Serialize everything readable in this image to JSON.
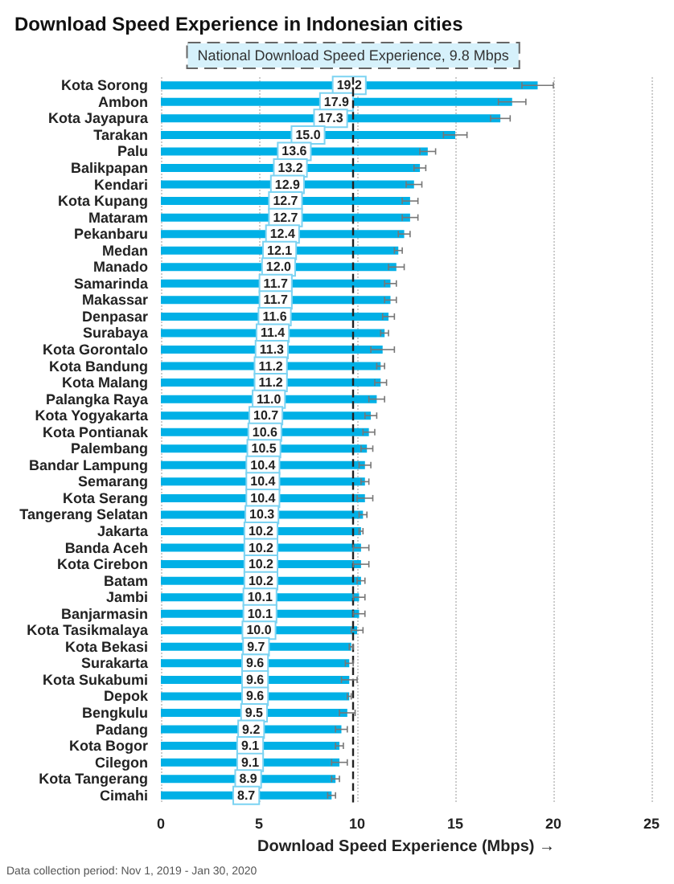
{
  "chart_data": {
    "type": "bar",
    "orientation": "horizontal",
    "title": "Download Speed Experience in Indonesian cities",
    "xlabel": "Download Speed Experience (Mbps) →",
    "categories": [
      "Kota Sorong",
      "Ambon",
      "Kota Jayapura",
      "Tarakan",
      "Palu",
      "Balikpapan",
      "Kendari",
      "Kota Kupang",
      "Mataram",
      "Pekanbaru",
      "Medan",
      "Manado",
      "Samarinda",
      "Makassar",
      "Denpasar",
      "Surabaya",
      "Kota Gorontalo",
      "Kota Bandung",
      "Kota Malang",
      "Palangka Raya",
      "Kota Yogyakarta",
      "Kota Pontianak",
      "Palembang",
      "Bandar Lampung",
      "Semarang",
      "Kota Serang",
      "Tangerang Selatan",
      "Jakarta",
      "Banda Aceh",
      "Kota Cirebon",
      "Batam",
      "Jambi",
      "Banjarmasin",
      "Kota Tasikmalaya",
      "Kota Bekasi",
      "Surakarta",
      "Kota Sukabumi",
      "Depok",
      "Bengkulu",
      "Padang",
      "Kota Bogor",
      "Cilegon",
      "Kota Tangerang",
      "Cimahi"
    ],
    "values": [
      19.2,
      17.9,
      17.3,
      15.0,
      13.6,
      13.2,
      12.9,
      12.7,
      12.7,
      12.4,
      12.1,
      12.0,
      11.7,
      11.7,
      11.6,
      11.4,
      11.3,
      11.2,
      11.2,
      11.0,
      10.7,
      10.6,
      10.5,
      10.4,
      10.4,
      10.4,
      10.3,
      10.2,
      10.2,
      10.2,
      10.2,
      10.1,
      10.1,
      10.0,
      9.7,
      9.6,
      9.6,
      9.6,
      9.5,
      9.2,
      9.1,
      9.1,
      8.9,
      8.7
    ],
    "errors": [
      0.8,
      0.7,
      0.5,
      0.6,
      0.4,
      0.3,
      0.4,
      0.4,
      0.4,
      0.3,
      0.2,
      0.4,
      0.3,
      0.3,
      0.3,
      0.2,
      0.6,
      0.2,
      0.3,
      0.4,
      0.3,
      0.3,
      0.3,
      0.3,
      0.2,
      0.4,
      0.2,
      0.1,
      0.4,
      0.4,
      0.2,
      0.3,
      0.3,
      0.3,
      0.1,
      0.2,
      0.4,
      0.1,
      0.4,
      0.3,
      0.2,
      0.4,
      0.2,
      0.2
    ],
    "value_labels": [
      "19.2",
      "17.9",
      "17.3",
      "15.0",
      "13.6",
      "13.2",
      "12.9",
      "12.7",
      "12.7",
      "12.4",
      "12.1",
      "12.0",
      "11.7",
      "11.7",
      "11.6",
      "11.4",
      "11.3",
      "11.2",
      "11.2",
      "11.0",
      "10.7",
      "10.6",
      "10.5",
      "10.4",
      "10.4",
      "10.4",
      "10.3",
      "10.2",
      "10.2",
      "10.2",
      "10.2",
      "10.1",
      "10.1",
      "10.0",
      "9.7",
      "9.6",
      "9.6",
      "9.6",
      "9.5",
      "9.2",
      "9.1",
      "9.1",
      "8.9",
      "8.7"
    ],
    "color": "#00b0e6",
    "xlim": [
      0,
      25
    ],
    "xticks": [
      0,
      5,
      10,
      15,
      20,
      25
    ],
    "grid": "x",
    "ref_lines": [
      {
        "axis": "x",
        "value": 9.8,
        "label": "National Download Speed Experience, 9.8 Mbps",
        "line_style": "dashed",
        "color": "#222222"
      }
    ],
    "annotations": [
      "Data collection period: Nov 1, 2019 - Jan 30, 2020"
    ]
  }
}
